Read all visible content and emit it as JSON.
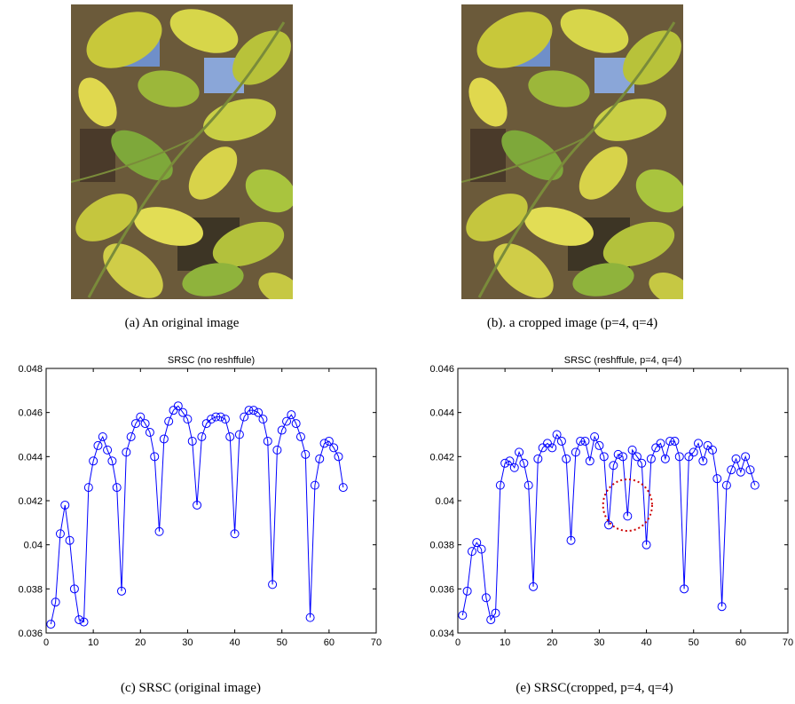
{
  "figure_a": {
    "caption": "(a) An original image"
  },
  "figure_b": {
    "caption": "(b). a cropped image (p=4, q=4)"
  },
  "figure_c": {
    "caption": "(c) SRSC (original image)"
  },
  "figure_e": {
    "caption": "(e) SRSC(cropped, p=4, q=4)"
  },
  "chart_data": [
    {
      "type": "line",
      "title": "SRSC (no reshffule)",
      "xlabel": "",
      "ylabel": "",
      "xlim": [
        0,
        70
      ],
      "ylim": [
        0.036,
        0.048
      ],
      "xticks": [
        0,
        10,
        20,
        30,
        40,
        50,
        60,
        70
      ],
      "yticks": [
        0.036,
        0.038,
        0.04,
        0.042,
        0.044,
        0.046,
        0.048
      ],
      "ytick_labels": [
        "0.036",
        "0.038",
        "0.04",
        "0.042",
        "0.044",
        "0.046",
        "0.048"
      ],
      "grid": false,
      "marker": "circle",
      "color": "#0000ff",
      "series": [
        {
          "values": [
            0.0364,
            0.0374,
            0.0405,
            0.0418,
            0.0402,
            0.038,
            0.0366,
            0.0365,
            0.0426,
            0.0438,
            0.0445,
            0.0449,
            0.0443,
            0.0438,
            0.0426,
            0.0379,
            0.0442,
            0.0449,
            0.0455,
            0.0458,
            0.0455,
            0.0451,
            0.044,
            0.0406,
            0.0448,
            0.0456,
            0.0461,
            0.0463,
            0.046,
            0.0457,
            0.0447,
            0.0418,
            0.0449,
            0.0455,
            0.0457,
            0.0458,
            0.0458,
            0.0457,
            0.0449,
            0.0405,
            0.045,
            0.0458,
            0.0461,
            0.0461,
            0.046,
            0.0457,
            0.0447,
            0.0382,
            0.0443,
            0.0452,
            0.0456,
            0.0459,
            0.0455,
            0.0449,
            0.0441,
            0.0367,
            0.0427,
            0.0439,
            0.0446,
            0.0447,
            0.0444,
            0.044,
            0.0426
          ]
        }
      ]
    },
    {
      "type": "line",
      "title": "SRSC (reshffule, p=4, q=4)",
      "xlabel": "",
      "ylabel": "",
      "xlim": [
        0,
        70
      ],
      "ylim": [
        0.034,
        0.046
      ],
      "xticks": [
        0,
        10,
        20,
        30,
        40,
        50,
        60,
        70
      ],
      "yticks": [
        0.034,
        0.036,
        0.038,
        0.04,
        0.042,
        0.044,
        0.046
      ],
      "ytick_labels": [
        "0.034",
        "0.036",
        "0.038",
        "0.04",
        "0.042",
        "0.044",
        "0.046"
      ],
      "grid": false,
      "marker": "circle",
      "color": "#0000ff",
      "annotation": {
        "type": "dotted-circle",
        "color": "#cc0000",
        "center": [
          36,
          0.0398
        ],
        "radius_x": 5.2
      },
      "series": [
        {
          "values": [
            0.0348,
            0.0359,
            0.0377,
            0.0381,
            0.0378,
            0.0356,
            0.0346,
            0.0349,
            0.0407,
            0.0417,
            0.0418,
            0.0415,
            0.0422,
            0.0417,
            0.0407,
            0.0361,
            0.0419,
            0.0424,
            0.0426,
            0.0424,
            0.043,
            0.0427,
            0.0419,
            0.0382,
            0.0422,
            0.0427,
            0.0427,
            0.0418,
            0.0429,
            0.0425,
            0.042,
            0.0389,
            0.0416,
            0.0421,
            0.042,
            0.0393,
            0.0423,
            0.042,
            0.0417,
            0.038,
            0.0419,
            0.0424,
            0.0426,
            0.0419,
            0.0427,
            0.0427,
            0.042,
            0.036,
            0.042,
            0.0422,
            0.0426,
            0.0418,
            0.0425,
            0.0423,
            0.041,
            0.0352,
            0.0407,
            0.0414,
            0.0419,
            0.0413,
            0.042,
            0.0414,
            0.0407
          ]
        }
      ]
    }
  ]
}
